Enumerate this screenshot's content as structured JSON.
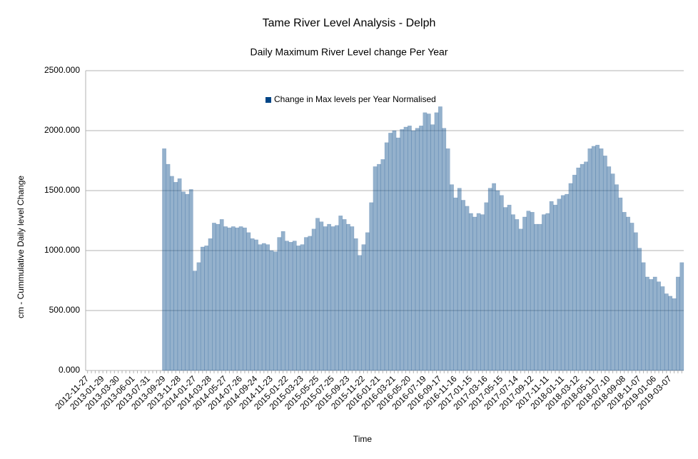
{
  "chart_data": {
    "type": "bar",
    "title": "Tame River Level Analysis - Delph",
    "subtitle": "Daily Maximum River Level change Per Year",
    "x_label": "Time",
    "y_label": "cm - Cummulative Daily level Change",
    "categories": [
      "2012-11-27",
      null,
      null,
      null,
      "2013-01-29",
      null,
      null,
      null,
      "2013-03-30",
      null,
      null,
      null,
      "2013-06-01",
      null,
      null,
      null,
      "2013-07-31",
      null,
      null,
      null,
      "2013-09-29",
      null,
      null,
      null,
      "2013-11-28",
      null,
      null,
      null,
      "2014-01-27",
      null,
      null,
      null,
      "2014-03-28",
      null,
      null,
      null,
      "2014-05-27",
      null,
      null,
      null,
      "2014-07-26",
      null,
      null,
      null,
      "2014-09-24",
      null,
      null,
      null,
      "2014-11-23",
      null,
      null,
      null,
      "2015-01-22",
      null,
      null,
      null,
      "2015-03-23",
      null,
      null,
      null,
      "2015-05-25",
      null,
      null,
      null,
      "2015-07-25",
      null,
      null,
      null,
      "2015-09-23",
      null,
      null,
      null,
      "2015-11-22",
      null,
      null,
      null,
      "2016-01-21",
      null,
      null,
      null,
      "2016-03-21",
      null,
      null,
      null,
      "2016-05-20",
      null,
      null,
      null,
      "2016-07-19",
      null,
      null,
      null,
      "2016-09-17",
      null,
      null,
      null,
      "2016-11-16",
      null,
      null,
      null,
      "2017-01-15",
      null,
      null,
      null,
      "2017-03-16",
      null,
      null,
      null,
      "2017-05-15",
      null,
      null,
      null,
      "2017-07-14",
      null,
      null,
      null,
      "2017-09-12",
      null,
      null,
      null,
      "2017-11-11",
      null,
      null,
      null,
      "2018-01-11",
      null,
      null,
      null,
      "2018-03-12",
      null,
      null,
      null,
      "2018-05-11",
      null,
      null,
      null,
      "2018-07-10",
      null,
      null,
      null,
      "2018-09-08",
      null,
      null,
      null,
      "2018-11-07",
      null,
      null,
      null,
      "2019-01-06",
      null,
      null,
      null,
      "2019-03-07",
      null,
      null,
      null
    ],
    "series": [
      {
        "name": "Change in Max levels per Year Normalised",
        "color": "#004586",
        "values": [
          null,
          null,
          null,
          null,
          null,
          null,
          null,
          null,
          null,
          null,
          null,
          null,
          null,
          null,
          null,
          null,
          null,
          null,
          null,
          null,
          1850,
          1720,
          1620,
          1570,
          1600,
          1490,
          1470,
          1510,
          830,
          900,
          1030,
          1040,
          1100,
          1230,
          1220,
          1260,
          1200,
          1190,
          1200,
          1190,
          1200,
          1190,
          1150,
          1100,
          1090,
          1050,
          1060,
          1050,
          1000,
          990,
          1110,
          1160,
          1080,
          1070,
          1080,
          1040,
          1050,
          1110,
          1120,
          1180,
          1270,
          1240,
          1200,
          1220,
          1200,
          1210,
          1290,
          1260,
          1220,
          1200,
          1100,
          960,
          1050,
          1150,
          1400,
          1700,
          1720,
          1760,
          1900,
          1980,
          2000,
          1940,
          2010,
          2030,
          2040,
          2000,
          2020,
          2040,
          2150,
          2140,
          2050,
          2150,
          2200,
          2020,
          1850,
          1550,
          1440,
          1520,
          1420,
          1370,
          1310,
          1280,
          1310,
          1300,
          1400,
          1520,
          1560,
          1500,
          1460,
          1360,
          1380,
          1300,
          1260,
          1180,
          1280,
          1330,
          1320,
          1220,
          1220,
          1300,
          1310,
          1410,
          1380,
          1430,
          1460,
          1470,
          1560,
          1630,
          1690,
          1720,
          1740,
          1850,
          1870,
          1880,
          1850,
          1790,
          1700,
          1640,
          1550,
          1440,
          1320,
          1280,
          1230,
          1150,
          1020,
          900,
          780,
          760,
          780,
          740,
          700,
          640,
          620,
          600,
          780,
          900
        ]
      }
    ],
    "ylim": [
      0,
      2500
    ],
    "yticks": [
      {
        "value": 0,
        "label": "0.000"
      },
      {
        "value": 500,
        "label": "500.000"
      },
      {
        "value": 1000,
        "label": "1000.000"
      },
      {
        "value": 1500,
        "label": "1500.000"
      },
      {
        "value": 2000,
        "label": "2000.000"
      },
      {
        "value": 2500,
        "label": "2500.000"
      }
    ],
    "grid": true
  }
}
